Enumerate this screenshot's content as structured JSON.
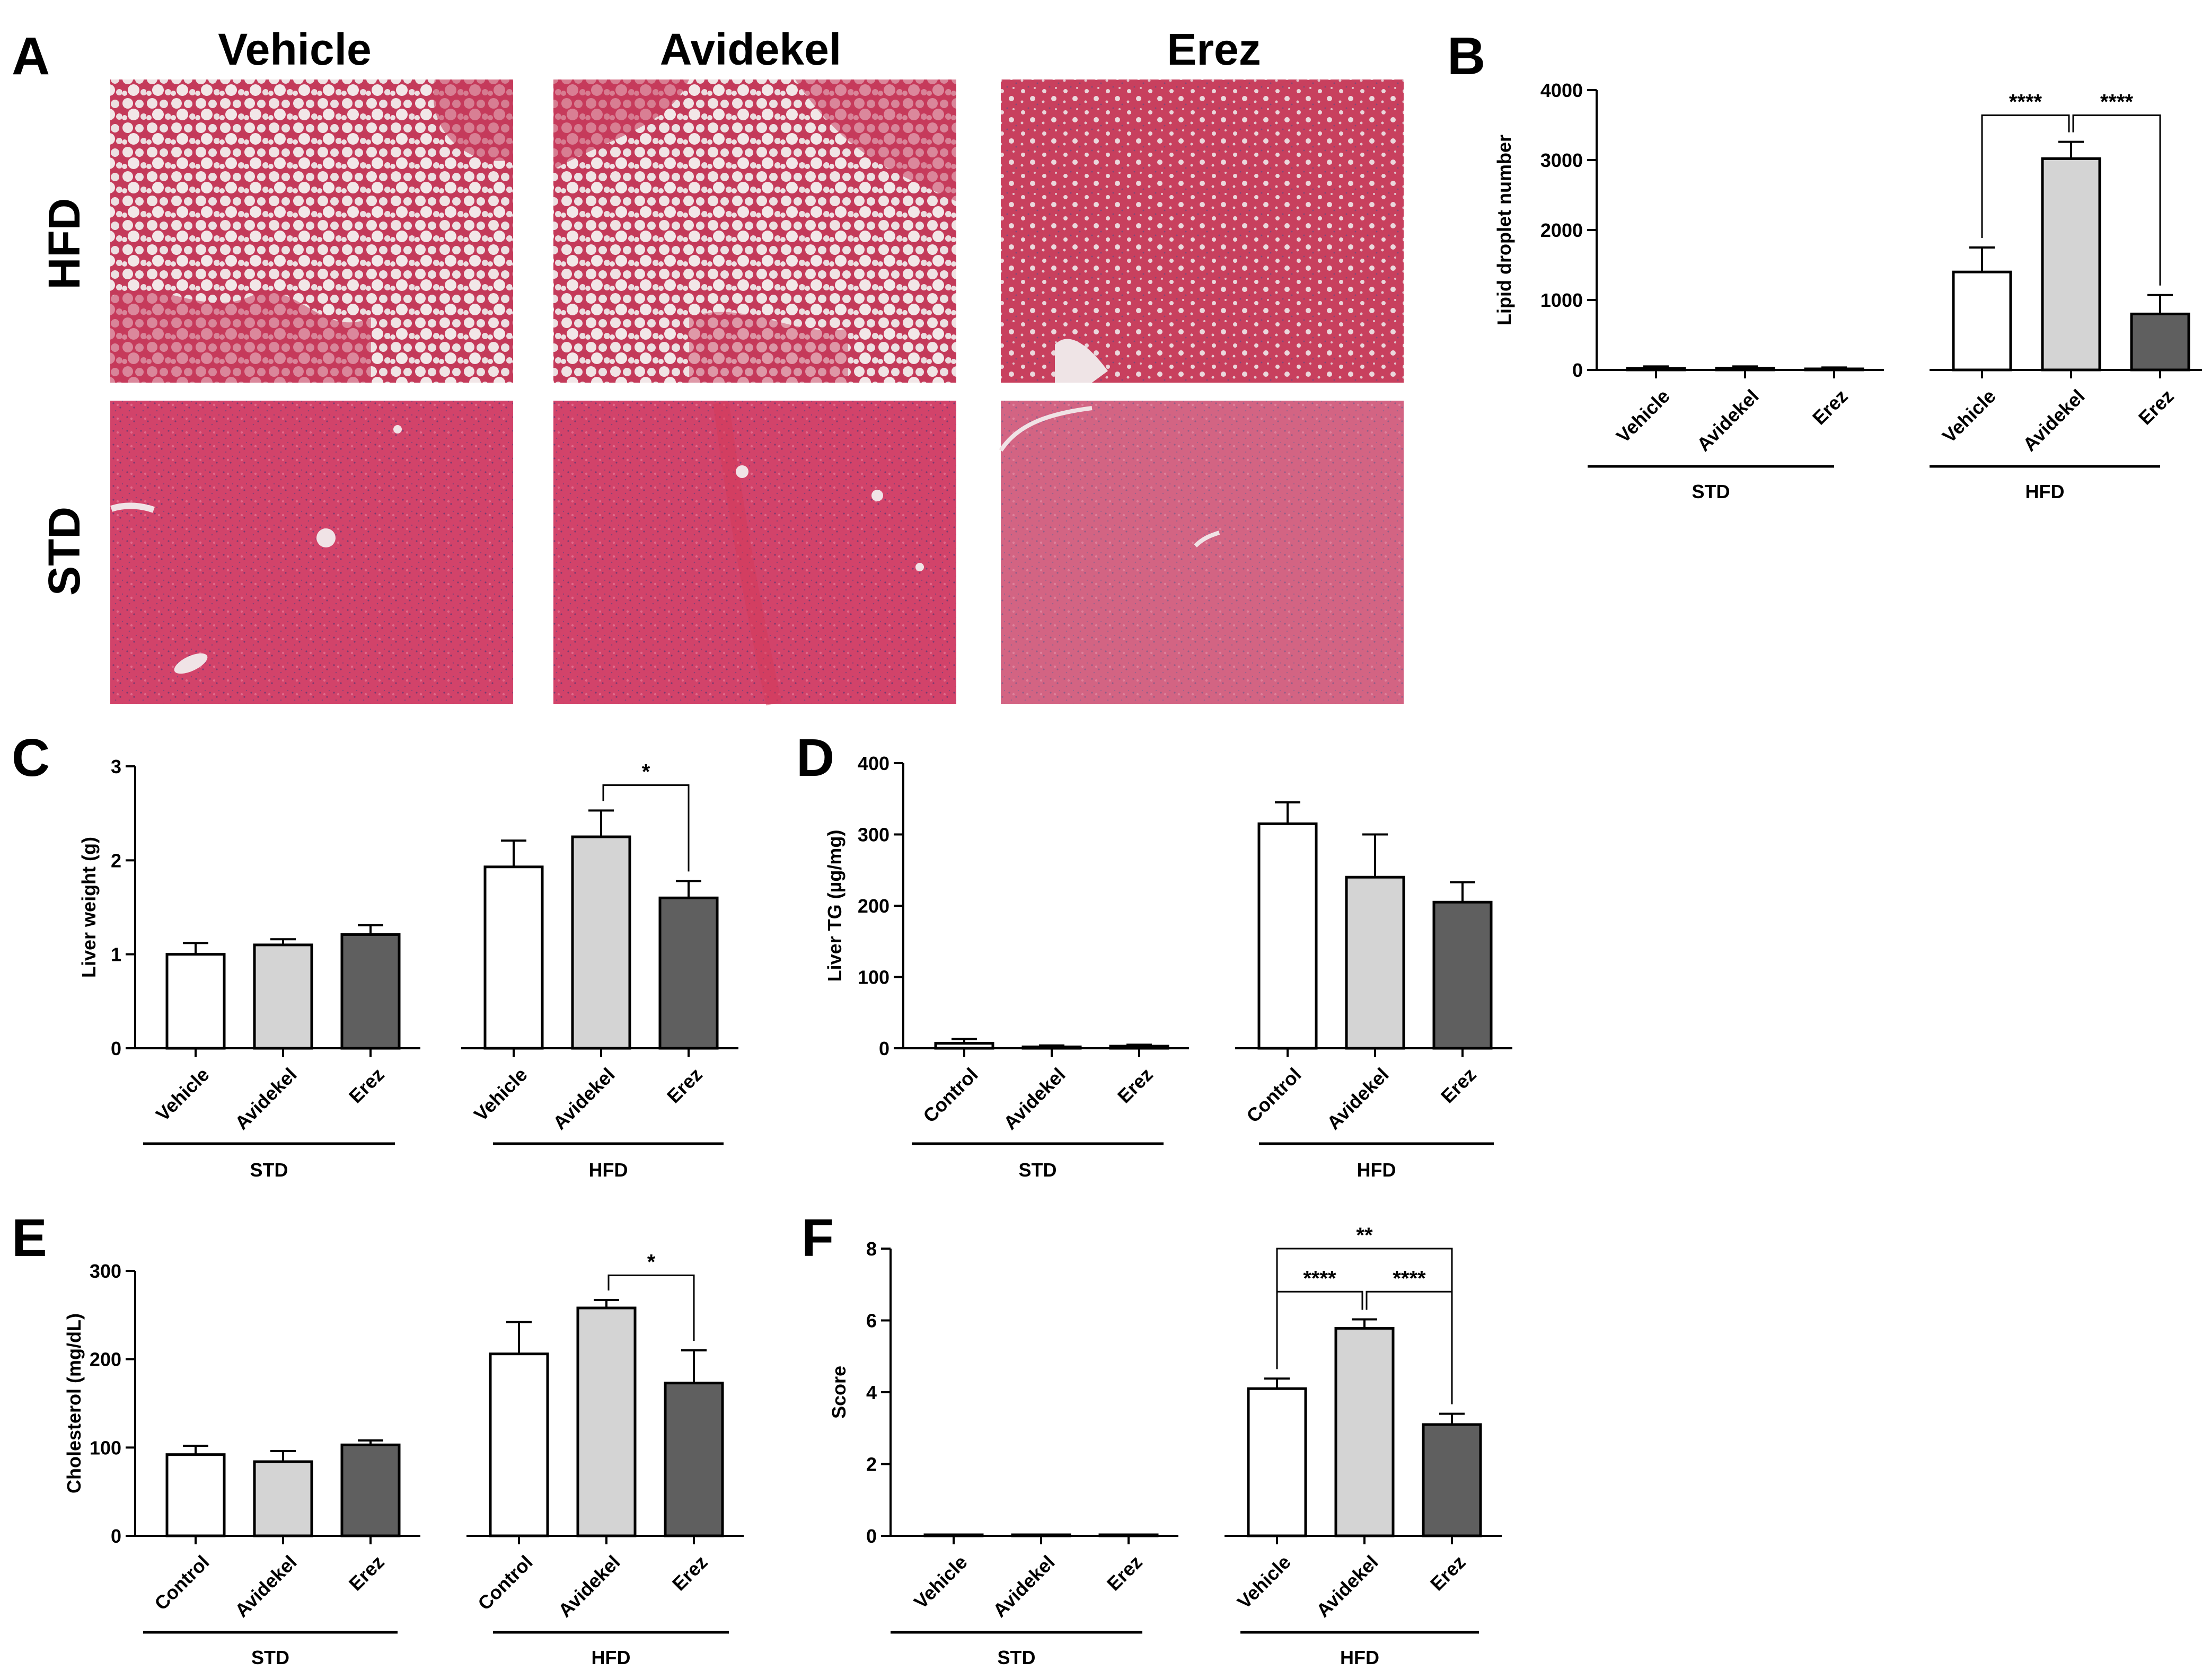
{
  "panel_letters": [
    "A",
    "B",
    "C",
    "D",
    "E",
    "F"
  ],
  "colors": {
    "vehicle": "#ffffff",
    "avidekel": "#d4d4d4",
    "erez": "#5f5f5f",
    "stroke": "#000000"
  },
  "micrographs": {
    "column_headers": [
      "Vehicle",
      "Avidekel",
      "Erez"
    ],
    "row_labels": [
      "HFD",
      "STD"
    ],
    "tissue_colors": {
      "stain": "#c8375a",
      "lipid": "#ecdcdd"
    }
  },
  "chart_data": [
    {
      "panel": "B",
      "type": "bar",
      "ylabel": "Lipid droplet number",
      "ylim": [
        0,
        4000
      ],
      "yticks": [
        0,
        1000,
        2000,
        3000,
        4000
      ],
      "groups": [
        {
          "name": "STD",
          "bars": [
            {
              "label": "Vehicle",
              "value": 20,
              "error": 30
            },
            {
              "label": "Avidekel",
              "value": 25,
              "error": 25
            },
            {
              "label": "Erez",
              "value": 15,
              "error": 20
            }
          ]
        },
        {
          "name": "HFD",
          "bars": [
            {
              "label": "Vehicle",
              "value": 1400,
              "error": 350
            },
            {
              "label": "Avidekel",
              "value": 3020,
              "error": 240
            },
            {
              "label": "Erez",
              "value": 800,
              "error": 270
            }
          ]
        }
      ],
      "significance": [
        {
          "group": 1,
          "from": 0,
          "to": 1,
          "label": "****",
          "y": 3640
        },
        {
          "group": 1,
          "from": 1,
          "to": 2,
          "label": "****",
          "y": 3640
        }
      ]
    },
    {
      "panel": "C",
      "type": "bar",
      "ylabel": "Liver weight (g)",
      "ylim": [
        0,
        3
      ],
      "yticks": [
        0,
        1,
        2,
        3
      ],
      "groups": [
        {
          "name": "STD",
          "bars": [
            {
              "label": "Vehicle",
              "value": 1.0,
              "error": 0.12
            },
            {
              "label": "Avidekel",
              "value": 1.1,
              "error": 0.06
            },
            {
              "label": "Erez",
              "value": 1.21,
              "error": 0.1
            }
          ]
        },
        {
          "name": "HFD",
          "bars": [
            {
              "label": "Vehicle",
              "value": 1.93,
              "error": 0.28
            },
            {
              "label": "Avidekel",
              "value": 2.25,
              "error": 0.28
            },
            {
              "label": "Erez",
              "value": 1.6,
              "error": 0.18
            }
          ]
        }
      ],
      "significance": [
        {
          "group": 1,
          "from": 1,
          "to": 2,
          "label": "*",
          "y": 2.8
        }
      ]
    },
    {
      "panel": "D",
      "type": "bar",
      "ylabel": "Liver TG (µg/mg)",
      "ylim": [
        0,
        400
      ],
      "yticks": [
        0,
        100,
        200,
        300,
        400
      ],
      "groups": [
        {
          "name": "STD",
          "bars": [
            {
              "label": "Control",
              "value": 7,
              "error": 6
            },
            {
              "label": "Avidekel",
              "value": 2,
              "error": 2
            },
            {
              "label": "Erez",
              "value": 3,
              "error": 2
            }
          ]
        },
        {
          "name": "HFD",
          "bars": [
            {
              "label": "Control",
              "value": 315,
              "error": 30
            },
            {
              "label": "Avidekel",
              "value": 240,
              "error": 60
            },
            {
              "label": "Erez",
              "value": 205,
              "error": 28
            }
          ]
        }
      ],
      "significance": []
    },
    {
      "panel": "E",
      "type": "bar",
      "ylabel": "Cholesterol (mg/dL)",
      "ylim": [
        0,
        300
      ],
      "yticks": [
        0,
        100,
        200,
        300
      ],
      "groups": [
        {
          "name": "STD",
          "bars": [
            {
              "label": "Control",
              "value": 92,
              "error": 10
            },
            {
              "label": "Avidekel",
              "value": 84,
              "error": 12
            },
            {
              "label": "Erez",
              "value": 103,
              "error": 5
            }
          ]
        },
        {
          "name": "HFD",
          "bars": [
            {
              "label": "Control",
              "value": 206,
              "error": 36
            },
            {
              "label": "Avidekel",
              "value": 258,
              "error": 9
            },
            {
              "label": "Erez",
              "value": 173,
              "error": 37
            }
          ]
        }
      ],
      "significance": [
        {
          "group": 1,
          "from": 1,
          "to": 2,
          "label": "*",
          "y": 295
        }
      ]
    },
    {
      "panel": "F",
      "type": "bar",
      "ylabel": "Score",
      "ylim": [
        0,
        8
      ],
      "yticks": [
        0,
        2,
        4,
        6,
        8
      ],
      "groups": [
        {
          "name": "STD",
          "bars": [
            {
              "label": "Vehicle",
              "value": 0,
              "error": 0
            },
            {
              "label": "Avidekel",
              "value": 0,
              "error": 0
            },
            {
              "label": "Erez",
              "value": 0,
              "error": 0
            }
          ]
        },
        {
          "name": "HFD",
          "bars": [
            {
              "label": "Vehicle",
              "value": 4.1,
              "error": 0.28
            },
            {
              "label": "Avidekel",
              "value": 5.78,
              "error": 0.25
            },
            {
              "label": "Erez",
              "value": 3.1,
              "error": 0.3
            }
          ]
        }
      ],
      "significance": [
        {
          "group": 1,
          "from": 0,
          "to": 2,
          "label": "**",
          "y": 8.0
        },
        {
          "group": 1,
          "from": 0,
          "to": 1,
          "label": "****",
          "y": 6.8
        },
        {
          "group": 1,
          "from": 1,
          "to": 2,
          "label": "****",
          "y": 6.8
        }
      ]
    }
  ]
}
